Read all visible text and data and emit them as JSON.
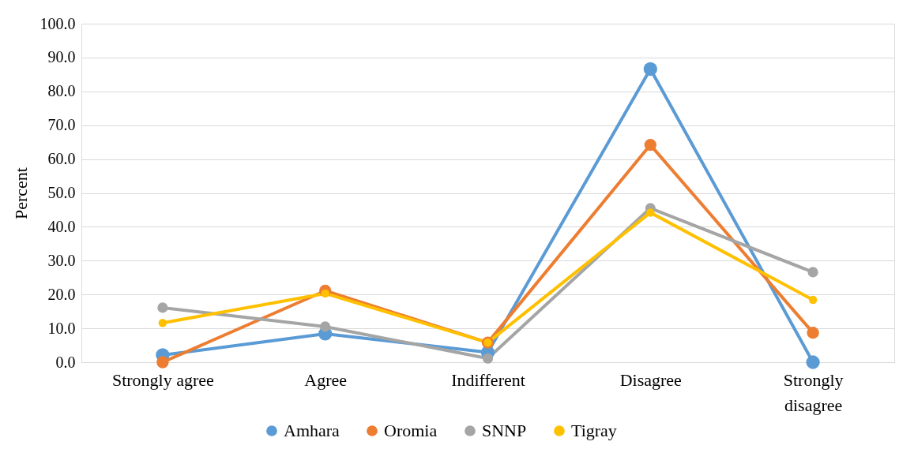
{
  "chart_data": {
    "type": "line",
    "ylabel": "Percent",
    "categories": [
      "Strongly agree",
      "Agree",
      "Indifferent",
      "Disagree",
      "Strongly disagree"
    ],
    "series": [
      {
        "name": "Amhara",
        "color": "#5b9bd5",
        "values": [
          2.1,
          8.4,
          2.9,
          86.6,
          0.0
        ]
      },
      {
        "name": "Oromia",
        "color": "#ed7d31",
        "values": [
          0.0,
          21.1,
          5.8,
          64.2,
          8.7
        ]
      },
      {
        "name": "SNNP",
        "color": "#a5a5a5",
        "values": [
          16.1,
          10.5,
          1.1,
          45.5,
          26.6
        ]
      },
      {
        "name": "Tigray",
        "color": "#ffc000",
        "values": [
          11.6,
          20.3,
          5.8,
          44.2,
          18.4
        ]
      }
    ],
    "ylim": [
      0,
      100
    ],
    "yticks": [
      {
        "value": 0,
        "label": "0.0"
      },
      {
        "value": 10,
        "label": "10.0"
      },
      {
        "value": 20,
        "label": "20.0"
      },
      {
        "value": 30,
        "label": "30.0"
      },
      {
        "value": 40,
        "label": "40.0"
      },
      {
        "value": 50,
        "label": "50.0"
      },
      {
        "value": 60,
        "label": "60.0"
      },
      {
        "value": 70,
        "label": "70.0"
      },
      {
        "value": 80,
        "label": "80.0"
      },
      {
        "value": 90,
        "label": "90.0"
      },
      {
        "value": 100,
        "label": "100.0"
      }
    ],
    "grid": "y",
    "legend": "bottom",
    "marker": "circle",
    "line_style": "solid"
  }
}
